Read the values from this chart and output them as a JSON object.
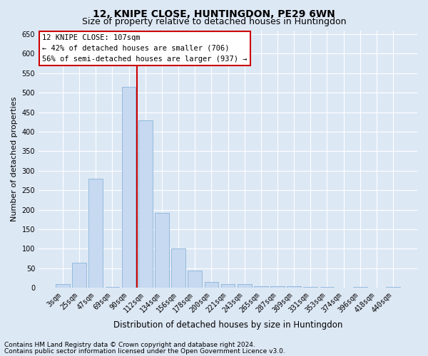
{
  "title": "12, KNIPE CLOSE, HUNTINGDON, PE29 6WN",
  "subtitle": "Size of property relative to detached houses in Huntingdon",
  "xlabel": "Distribution of detached houses by size in Huntingdon",
  "ylabel": "Number of detached properties",
  "categories": [
    "3sqm",
    "25sqm",
    "47sqm",
    "69sqm",
    "90sqm",
    "112sqm",
    "134sqm",
    "156sqm",
    "178sqm",
    "200sqm",
    "221sqm",
    "243sqm",
    "265sqm",
    "287sqm",
    "309sqm",
    "331sqm",
    "353sqm",
    "374sqm",
    "396sqm",
    "418sqm",
    "440sqm"
  ],
  "values": [
    10,
    65,
    280,
    2,
    515,
    430,
    192,
    100,
    45,
    15,
    10,
    10,
    5,
    5,
    5,
    3,
    3,
    0,
    3,
    0,
    3
  ],
  "bar_color": "#c6d9f0",
  "bar_edgecolor": "#8ab4d8",
  "vline_x_index": 4.5,
  "vline_color": "#cc0000",
  "annotation_text": "12 KNIPE CLOSE: 107sqm\n← 42% of detached houses are smaller (706)\n56% of semi-detached houses are larger (937) →",
  "annotation_box_facecolor": "#ffffff",
  "annotation_box_edgecolor": "#cc0000",
  "ylim": [
    0,
    660
  ],
  "yticks": [
    0,
    50,
    100,
    150,
    200,
    250,
    300,
    350,
    400,
    450,
    500,
    550,
    600,
    650
  ],
  "background_color": "#dde8f5",
  "grid_color": "#ffffff",
  "footnote1": "Contains HM Land Registry data © Crown copyright and database right 2024.",
  "footnote2": "Contains public sector information licensed under the Open Government Licence v3.0.",
  "title_fontsize": 10,
  "subtitle_fontsize": 9,
  "xlabel_fontsize": 8.5,
  "ylabel_fontsize": 8,
  "tick_fontsize": 7,
  "annotation_fontsize": 7.5,
  "footnote_fontsize": 6.5
}
